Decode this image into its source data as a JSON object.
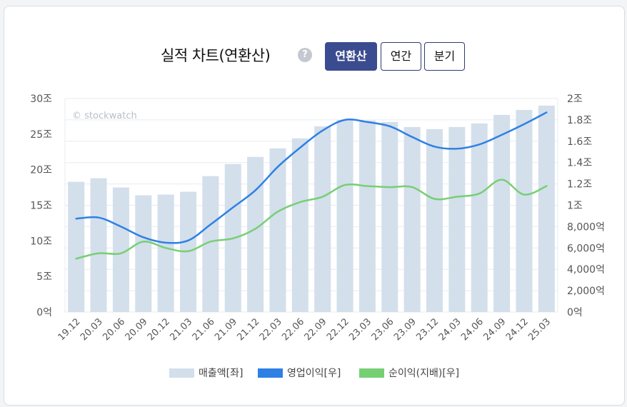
{
  "header": {
    "title": "실적 차트(연환산)",
    "help_label": "?",
    "buttons": [
      {
        "label": "연환산",
        "active": true
      },
      {
        "label": "연간",
        "active": false
      },
      {
        "label": "분기",
        "active": false
      }
    ]
  },
  "chart_data": {
    "type": "bar",
    "watermark": "© stockwatch",
    "categories": [
      "19.12",
      "20.03",
      "20.06",
      "20.09",
      "20.12",
      "21.03",
      "21.06",
      "21.09",
      "21.12",
      "22.03",
      "22.06",
      "22.09",
      "22.12",
      "23.03",
      "23.06",
      "23.09",
      "23.12",
      "24.03",
      "24.06",
      "24.09",
      "24.12",
      "25.03"
    ],
    "left_axis": {
      "ticks": [
        0,
        5,
        10,
        15,
        20,
        25,
        30
      ],
      "tick_labels": [
        "0억",
        "5조",
        "10조",
        "15조",
        "20조",
        "25조",
        "30조"
      ],
      "ylim": [
        0,
        30
      ]
    },
    "right_axis": {
      "ticks": [
        0,
        0.2,
        0.4,
        0.6,
        0.8,
        1.0,
        1.2,
        1.4,
        1.6,
        1.8,
        2.0
      ],
      "tick_labels": [
        "0억",
        "2,000억",
        "4,000억",
        "6,000억",
        "8,000억",
        "1조",
        "1.2조",
        "1.4조",
        "1.6조",
        "1.8조",
        "2조"
      ],
      "ylim": [
        0,
        2
      ]
    },
    "series": [
      {
        "name": "매출액[좌]",
        "kind": "bar",
        "axis": "left",
        "color": "#d3dfeb",
        "values": [
          18.3,
          18.8,
          17.5,
          16.4,
          16.5,
          16.9,
          19.1,
          20.8,
          21.8,
          23.0,
          24.4,
          26.1,
          27.0,
          26.9,
          26.7,
          26.0,
          25.7,
          26.0,
          26.5,
          27.7,
          28.4,
          29.0
        ]
      },
      {
        "name": "영업이익[우]",
        "kind": "line",
        "axis": "right",
        "color": "#2f80e4",
        "values": [
          0.875,
          0.885,
          0.8,
          0.7,
          0.65,
          0.67,
          0.82,
          0.98,
          1.14,
          1.36,
          1.54,
          1.7,
          1.8,
          1.78,
          1.74,
          1.64,
          1.55,
          1.53,
          1.57,
          1.66,
          1.76,
          1.87
        ]
      },
      {
        "name": "순이익(지배)[우]",
        "kind": "line",
        "axis": "right",
        "color": "#77cf74",
        "values": [
          0.5,
          0.55,
          0.55,
          0.66,
          0.6,
          0.57,
          0.66,
          0.69,
          0.78,
          0.94,
          1.03,
          1.08,
          1.19,
          1.18,
          1.17,
          1.17,
          1.06,
          1.08,
          1.11,
          1.24,
          1.1,
          1.18
        ]
      }
    ],
    "legend_position": "bottom-center",
    "grid": true
  }
}
